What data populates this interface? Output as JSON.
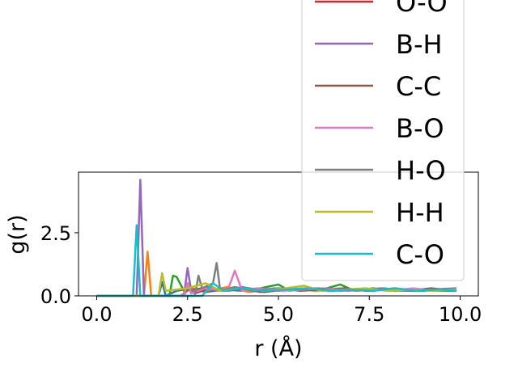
{
  "chart_data": {
    "type": "line",
    "xlabel": "r (Å)",
    "ylabel": "g(r)",
    "xlim": [
      -0.5,
      10.5
    ],
    "ylim": [
      0,
      4.9
    ],
    "xticks": [
      {
        "value": 0,
        "label": "0.0"
      },
      {
        "value": 2.5,
        "label": "2.5"
      },
      {
        "value": 5,
        "label": "5.0"
      },
      {
        "value": 7.5,
        "label": "7.5"
      },
      {
        "value": 10,
        "label": "10.0"
      }
    ],
    "yticks": [
      {
        "value": 0,
        "label": "0.0"
      },
      {
        "value": 2.5,
        "label": "2.5"
      }
    ],
    "legend": "upper right",
    "series": [
      {
        "color": "#1f77b4",
        "x": [
          0,
          1.7,
          1.8,
          1.9,
          2.2,
          2.6,
          3.0,
          3.5,
          4.0,
          4.5,
          5.0,
          5.5,
          6.0,
          6.5,
          7.0,
          7.5,
          8.0,
          8.5,
          9.0,
          9.5,
          9.9
        ],
        "values": [
          0,
          0,
          0.55,
          0,
          0.2,
          0.3,
          0.15,
          0.25,
          0.2,
          0.3,
          0.2,
          0.25,
          0.3,
          0.2,
          0.25,
          0.2,
          0.25,
          0.2,
          0.2,
          0.25,
          0.2
        ]
      },
      {
        "color": "#ff7f0e",
        "x": [
          0,
          1.3,
          1.4,
          1.5,
          2.3,
          2.6,
          3.0,
          3.6,
          4.2,
          4.8,
          5.4,
          6.0,
          6.6,
          7.2,
          7.8,
          8.4,
          9.0,
          9.6,
          9.9
        ],
        "values": [
          0,
          0,
          1.75,
          0,
          0,
          0.3,
          0.2,
          0.35,
          0.15,
          0.25,
          0.3,
          0.2,
          0.25,
          0.2,
          0.3,
          0.2,
          0.25,
          0.2,
          0.25
        ]
      },
      {
        "color": "#2ca02c",
        "x": [
          0,
          2.0,
          2.1,
          2.2,
          2.4,
          2.9,
          3.4,
          4.0,
          4.5,
          5.0,
          5.3,
          5.8,
          6.2,
          6.7,
          7.1,
          7.6,
          8.2,
          8.8,
          9.4,
          9.9
        ],
        "values": [
          0,
          0,
          0.8,
          0.75,
          0.2,
          0.3,
          0.2,
          0.25,
          0.3,
          0.45,
          0.2,
          0.3,
          0.25,
          0.45,
          0.2,
          0.3,
          0.2,
          0.25,
          0.2,
          0.2
        ]
      },
      {
        "name": "O-O",
        "color": "#d62728",
        "x": [
          0,
          2.4,
          2.5,
          2.7,
          3.1,
          3.6,
          4.1,
          4.6,
          5.2,
          5.8,
          6.4,
          7.0,
          7.6,
          8.2,
          8.8,
          9.4,
          9.9
        ],
        "values": [
          0,
          0,
          0.35,
          0.1,
          0.3,
          0.2,
          0.3,
          0.15,
          0.25,
          0.3,
          0.2,
          0.25,
          0.2,
          0.3,
          0.2,
          0.25,
          0.2
        ]
      },
      {
        "name": "B-H",
        "color": "#9467bd",
        "x": [
          0,
          1.1,
          1.2,
          1.3,
          2.4,
          2.5,
          2.6,
          3.0,
          3.5,
          4.0,
          4.6,
          5.2,
          5.8,
          6.4,
          7.0,
          7.6,
          8.2,
          8.8,
          9.4,
          9.9
        ],
        "values": [
          0,
          0,
          4.6,
          0,
          0,
          1.1,
          0.2,
          0.3,
          0.2,
          0.35,
          0.2,
          0.25,
          0.3,
          0.2,
          0.25,
          0.2,
          0.3,
          0.2,
          0.25,
          0.2
        ]
      },
      {
        "name": "C-C",
        "color": "#8c564b",
        "x": [
          0,
          2.4,
          2.5,
          2.6,
          3.0,
          3.5,
          4.0,
          4.5,
          5.0,
          5.6,
          6.2,
          6.8,
          7.4,
          8.0,
          8.6,
          9.2,
          9.9
        ],
        "values": [
          0,
          0,
          0.5,
          0.1,
          0.35,
          0.2,
          0.3,
          0.15,
          0.3,
          0.2,
          0.25,
          0.3,
          0.2,
          0.25,
          0.2,
          0.3,
          0.2
        ]
      },
      {
        "name": "B-O",
        "color": "#e377c2",
        "x": [
          0,
          2.4,
          2.5,
          2.6,
          3.0,
          3.6,
          3.8,
          4.0,
          4.5,
          5.1,
          5.7,
          6.3,
          6.9,
          7.5,
          8.1,
          8.7,
          9.3,
          9.9
        ],
        "values": [
          0,
          0,
          0.5,
          0.1,
          0.3,
          0.2,
          1.0,
          0.2,
          0.3,
          0.2,
          0.25,
          0.3,
          0.2,
          0.25,
          0.2,
          0.3,
          0.2,
          0.25
        ]
      },
      {
        "name": "H-O",
        "color": "#7f7f7f",
        "x": [
          0,
          2.7,
          2.8,
          2.9,
          3.2,
          3.3,
          3.4,
          3.8,
          4.3,
          4.9,
          5.5,
          6.1,
          6.7,
          7.3,
          7.9,
          8.5,
          9.1,
          9.9
        ],
        "values": [
          0,
          0,
          0.8,
          0.3,
          0.5,
          1.3,
          0.2,
          0.35,
          0.2,
          0.3,
          0.25,
          0.3,
          0.2,
          0.25,
          0.3,
          0.2,
          0.25,
          0.3
        ]
      },
      {
        "name": "H-H",
        "color": "#bcbd22",
        "x": [
          0,
          1.7,
          1.8,
          1.9,
          2.5,
          3.0,
          3.4,
          4.0,
          4.6,
          5.2,
          5.7,
          6.2,
          6.8,
          7.4,
          8.0,
          8.6,
          9.2,
          9.9
        ],
        "values": [
          0,
          0,
          0.9,
          0.2,
          0.3,
          0.5,
          0.2,
          0.3,
          0.2,
          0.3,
          0.4,
          0.2,
          0.25,
          0.3,
          0.2,
          0.25,
          0.2,
          0.25
        ]
      },
      {
        "name": "C-O",
        "color": "#17becf",
        "x": [
          0,
          1.0,
          1.1,
          1.2,
          2.9,
          3.2,
          3.5,
          4.0,
          4.6,
          5.2,
          5.8,
          6.4,
          7.0,
          7.6,
          8.2,
          8.8,
          9.4,
          9.9
        ],
        "values": [
          0,
          0,
          2.8,
          0,
          0,
          0.5,
          0.2,
          0.3,
          0.2,
          0.25,
          0.3,
          0.2,
          0.25,
          0.2,
          0.3,
          0.2,
          0.25,
          0.2
        ]
      }
    ]
  }
}
